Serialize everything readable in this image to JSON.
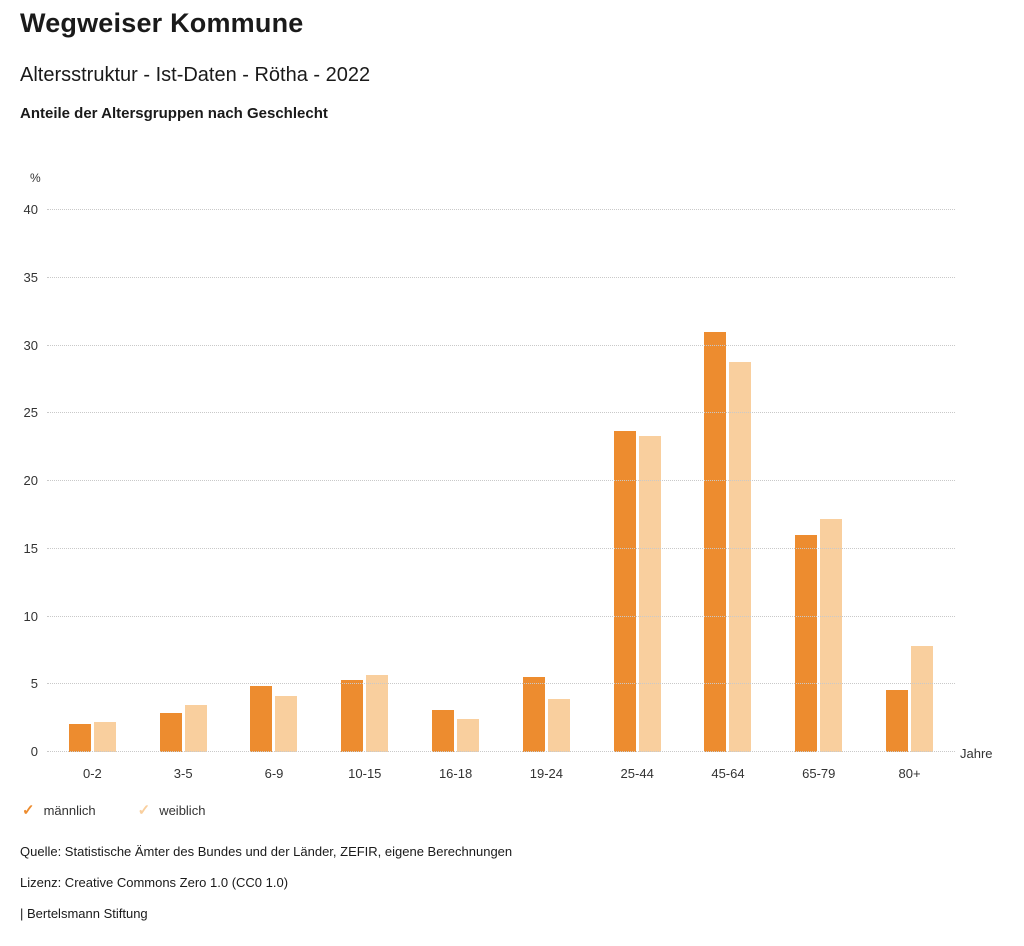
{
  "header": {
    "title": "Wegweiser Kommune",
    "subtitle": "Altersstruktur - Ist-Daten - Rötha - 2022",
    "heading": "Anteile der Altersgruppen nach Geschlecht"
  },
  "chart_data": {
    "type": "bar",
    "title": "Anteile der Altersgruppen nach Geschlecht",
    "categories": [
      "0-2",
      "3-5",
      "6-9",
      "10-15",
      "16-18",
      "19-24",
      "25-44",
      "45-64",
      "65-79",
      "80+"
    ],
    "series": [
      {
        "name": "männlich",
        "color": "#ED8C2F",
        "values": [
          2.1,
          2.9,
          4.9,
          5.3,
          3.1,
          5.5,
          23.7,
          31.0,
          16.0,
          4.6
        ]
      },
      {
        "name": "weiblich",
        "color": "#F9CF9E",
        "values": [
          2.2,
          3.5,
          4.1,
          5.7,
          2.4,
          3.9,
          23.3,
          28.8,
          17.2,
          7.8
        ]
      }
    ],
    "ylabel": "%",
    "xlabel": "Jahre",
    "ylim": [
      0,
      40
    ],
    "ytick_step": 5,
    "grid": true,
    "legend_position": "bottom",
    "legend_marker": "✓"
  },
  "footer": {
    "source": "Quelle: Statistische Ämter des Bundes und der Länder, ZEFIR, eigene Berechnungen",
    "license": "Lizenz: Creative Commons Zero 1.0 (CC0 1.0)",
    "attribution": "| Bertelsmann Stiftung"
  }
}
